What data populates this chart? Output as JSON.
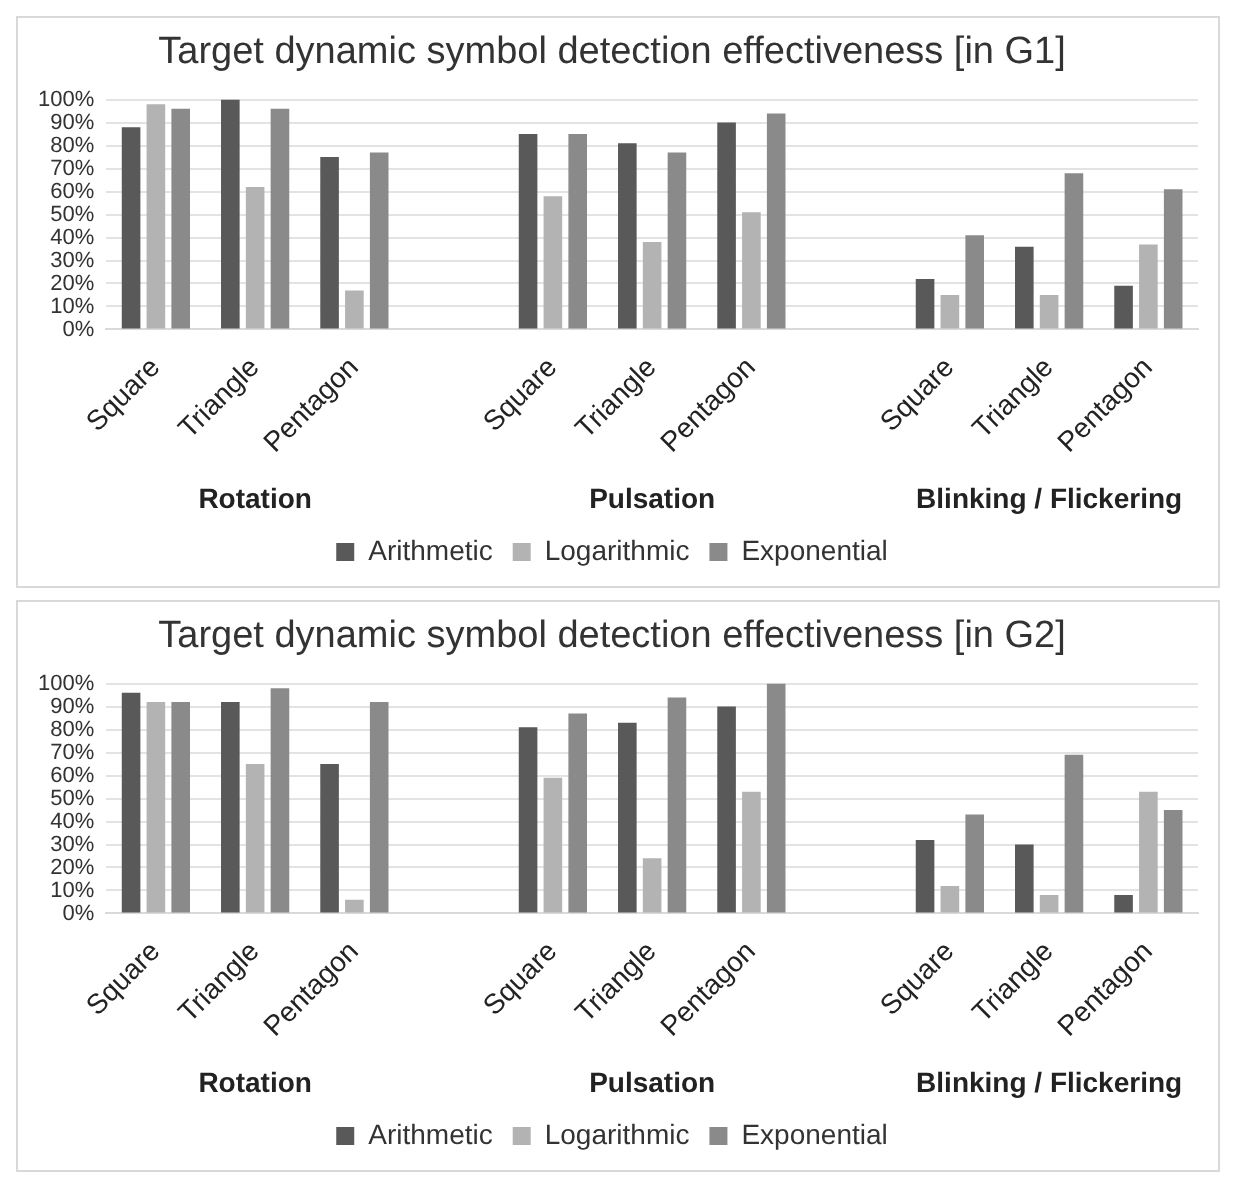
{
  "chart_data": [
    {
      "type": "bar",
      "title": "Target dynamic symbol detection effectiveness [in G1]",
      "categories": [
        "Square",
        "Triangle",
        "Pentagon",
        null,
        "Square",
        "Triangle",
        "Pentagon",
        null,
        "Square",
        "Triangle",
        "Pentagon"
      ],
      "series": [
        {
          "name": "Arithmetic",
          "color": "#595959",
          "values": [
            88,
            100,
            75,
            null,
            85,
            81,
            90,
            null,
            22,
            36,
            19
          ]
        },
        {
          "name": "Logarithmic",
          "color": "#b3b3b3",
          "values": [
            98,
            62,
            17,
            null,
            58,
            38,
            51,
            null,
            15,
            15,
            37
          ]
        },
        {
          "name": "Exponential",
          "color": "#8a8a8a",
          "values": [
            96,
            96,
            77,
            null,
            85,
            77,
            94,
            null,
            41,
            68,
            61
          ]
        }
      ],
      "annotations": [
        "Rotation",
        "Pulsation",
        "Blinking / Flickering"
      ],
      "ylim": [
        0,
        100
      ],
      "yticks": [
        {
          "value": 0,
          "label": "0%"
        },
        {
          "value": 10,
          "label": "10%"
        },
        {
          "value": 20,
          "label": "20%"
        },
        {
          "value": 30,
          "label": "30%"
        },
        {
          "value": 40,
          "label": "40%"
        },
        {
          "value": 50,
          "label": "50%"
        },
        {
          "value": 60,
          "label": "60%"
        },
        {
          "value": 70,
          "label": "70%"
        },
        {
          "value": 80,
          "label": "80%"
        },
        {
          "value": 90,
          "label": "90%"
        },
        {
          "value": 100,
          "label": "100%"
        }
      ],
      "grid": "y",
      "legend": "bottom"
    },
    {
      "type": "bar",
      "title": "Target dynamic symbol detection effectiveness [in G2]",
      "categories": [
        "Square",
        "Triangle",
        "Pentagon",
        null,
        "Square",
        "Triangle",
        "Pentagon",
        null,
        "Square",
        "Triangle",
        "Pentagon"
      ],
      "series": [
        {
          "name": "Arithmetic",
          "color": "#595959",
          "values": [
            96,
            92,
            65,
            null,
            81,
            83,
            90,
            null,
            32,
            30,
            8
          ]
        },
        {
          "name": "Logarithmic",
          "color": "#b3b3b3",
          "values": [
            92,
            65,
            6,
            null,
            59,
            24,
            53,
            null,
            12,
            8,
            53
          ]
        },
        {
          "name": "Exponential",
          "color": "#8a8a8a",
          "values": [
            92,
            98,
            92,
            null,
            87,
            94,
            100,
            null,
            43,
            69,
            45
          ]
        }
      ],
      "annotations": [
        "Rotation",
        "Pulsation",
        "Blinking / Flickering"
      ],
      "ylim": [
        0,
        100
      ],
      "yticks": [
        {
          "value": 0,
          "label": "0%"
        },
        {
          "value": 10,
          "label": "10%"
        },
        {
          "value": 20,
          "label": "20%"
        },
        {
          "value": 30,
          "label": "30%"
        },
        {
          "value": 40,
          "label": "40%"
        },
        {
          "value": 50,
          "label": "50%"
        },
        {
          "value": 60,
          "label": "60%"
        },
        {
          "value": 70,
          "label": "70%"
        },
        {
          "value": 80,
          "label": "80%"
        },
        {
          "value": 90,
          "label": "90%"
        },
        {
          "value": 100,
          "label": "100%"
        }
      ],
      "grid": "y",
      "legend": "bottom"
    }
  ]
}
